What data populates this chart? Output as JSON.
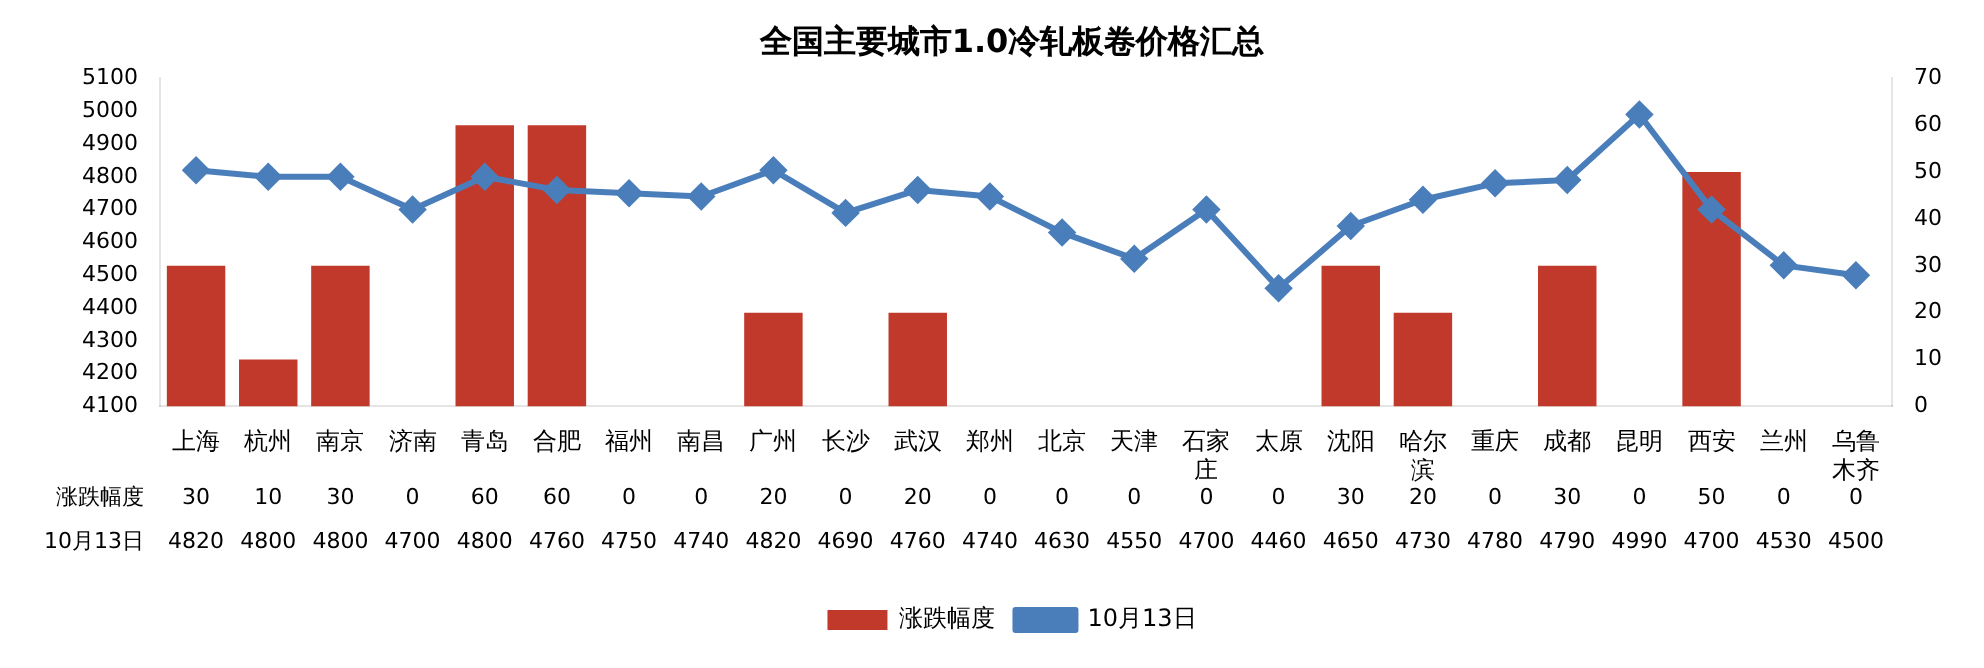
{
  "chart_data": {
    "type": "bar",
    "title": "全国主要城市1.0冷轧板卷价格汇总",
    "categories": [
      "上海",
      "杭州",
      "南京",
      "济南",
      "青岛",
      "合肥",
      "福州",
      "南昌",
      "广州",
      "长沙",
      "武汉",
      "郑州",
      "北京",
      "天津",
      "石家庄",
      "太原",
      "沈阳",
      "哈尔滨",
      "重庆",
      "成都",
      "昆明",
      "西安",
      "兰州",
      "乌鲁木齐"
    ],
    "series": [
      {
        "name": "涨跌幅度",
        "axis": "y2",
        "color": "#c0392b",
        "values": [
          30,
          10,
          30,
          0,
          60,
          60,
          0,
          0,
          20,
          0,
          20,
          0,
          0,
          0,
          0,
          0,
          30,
          20,
          0,
          30,
          0,
          50,
          0,
          0
        ]
      },
      {
        "name": "10月13日",
        "type": "line",
        "color": "#4a7ebb",
        "values": [
          4820,
          4800,
          4800,
          4700,
          4800,
          4760,
          4750,
          4740,
          4820,
          4690,
          4760,
          4740,
          4630,
          4550,
          4700,
          4460,
          4650,
          4730,
          4780,
          4790,
          4990,
          4700,
          4530,
          4500
        ]
      }
    ],
    "ylim": [
      4100,
      5100
    ],
    "yticks": [
      4100,
      4200,
      4300,
      4400,
      4500,
      4600,
      4700,
      4800,
      4900,
      5000,
      5100
    ],
    "y2lim": [
      0,
      70
    ],
    "y2ticks": [
      0,
      10,
      20,
      30,
      40,
      50,
      60,
      70
    ],
    "marker": "diamond",
    "data_labels": true,
    "legend": "bottom",
    "grid": false
  }
}
